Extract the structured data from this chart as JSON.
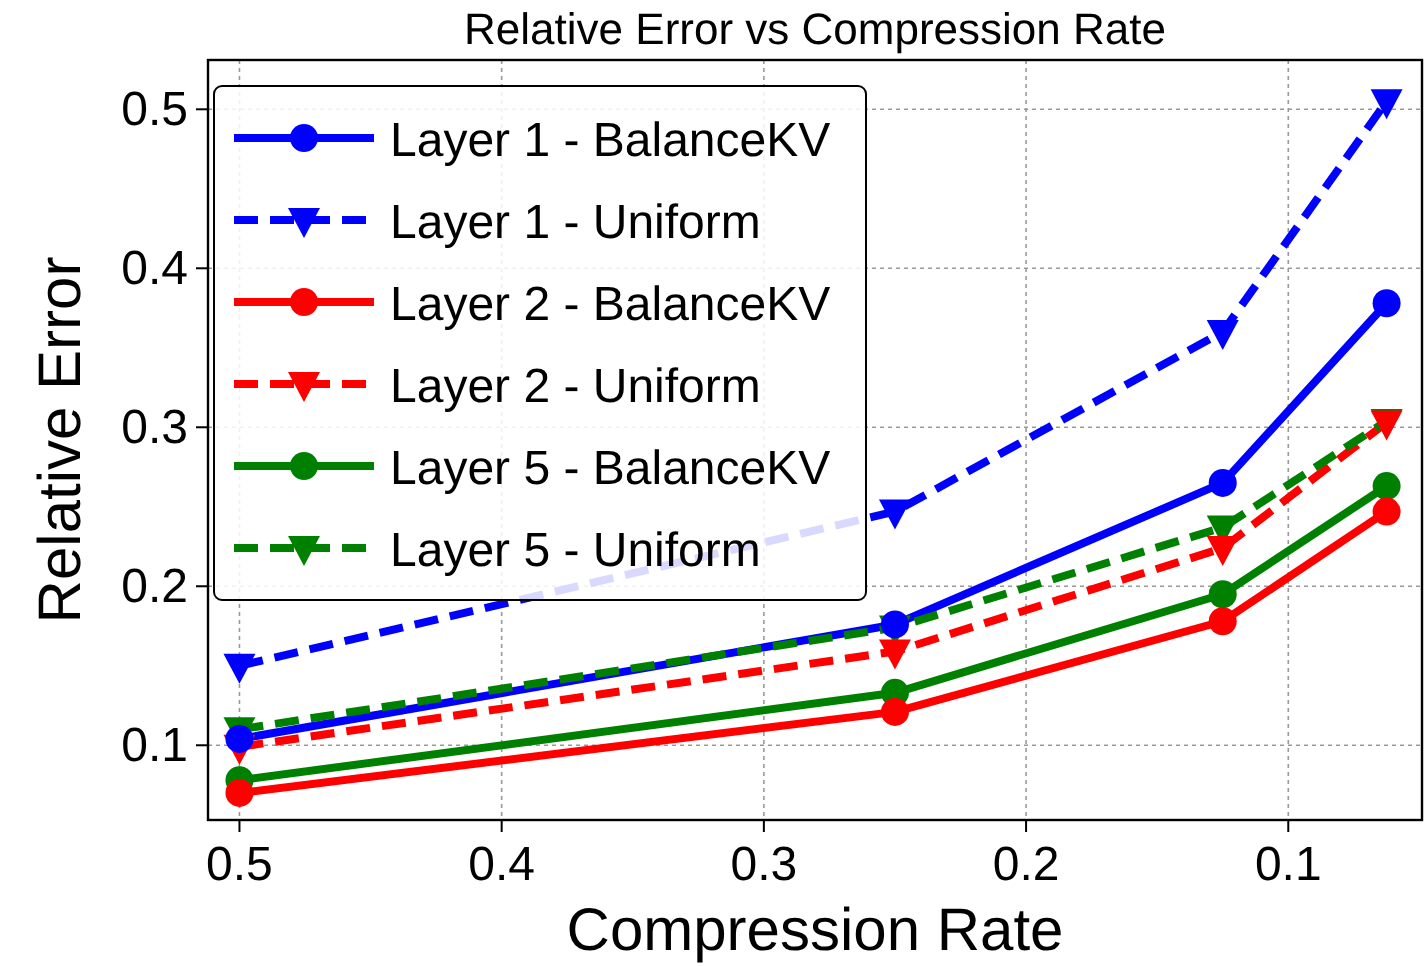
{
  "chart_data": {
    "type": "line",
    "title": "Relative Error vs Compression Rate",
    "xlabel": "Compression Rate",
    "ylabel": "Relative Error",
    "x": [
      0.5,
      0.25,
      0.125,
      0.0625
    ],
    "xlim": [
      0.512,
      0.049
    ],
    "xticks": [
      0.5,
      0.4,
      0.3,
      0.2,
      0.1
    ],
    "ylim": [
      0.053,
      0.531
    ],
    "yticks": [
      0.1,
      0.2,
      0.3,
      0.4,
      0.5
    ],
    "grid": true,
    "legend": "top left",
    "series": [
      {
        "name": "Layer 1 - BalanceKV",
        "color": "#0000ff",
        "values": [
          0.104,
          0.176,
          0.265,
          0.378
        ],
        "marker": "circle",
        "line_style": "solid"
      },
      {
        "name": "Layer 1 - Uniform",
        "color": "#0000ff",
        "values": [
          0.15,
          0.247,
          0.36,
          0.505
        ],
        "marker": "triangle",
        "line_style": "dashed"
      },
      {
        "name": "Layer 2 - BalanceKV",
        "color": "#ff0000",
        "values": [
          0.07,
          0.121,
          0.178,
          0.247
        ],
        "marker": "circle",
        "line_style": "solid"
      },
      {
        "name": "Layer 2 - Uniform",
        "color": "#ff0000",
        "values": [
          0.099,
          0.159,
          0.224,
          0.303
        ],
        "marker": "triangle",
        "line_style": "dashed"
      },
      {
        "name": "Layer 5 - BalanceKV",
        "color": "#008000",
        "values": [
          0.078,
          0.133,
          0.195,
          0.263
        ],
        "marker": "circle",
        "line_style": "solid"
      },
      {
        "name": "Layer 5 - Uniform",
        "color": "#008000",
        "values": [
          0.11,
          0.174,
          0.237,
          0.304
        ],
        "marker": "triangle",
        "line_style": "dashed"
      }
    ]
  }
}
